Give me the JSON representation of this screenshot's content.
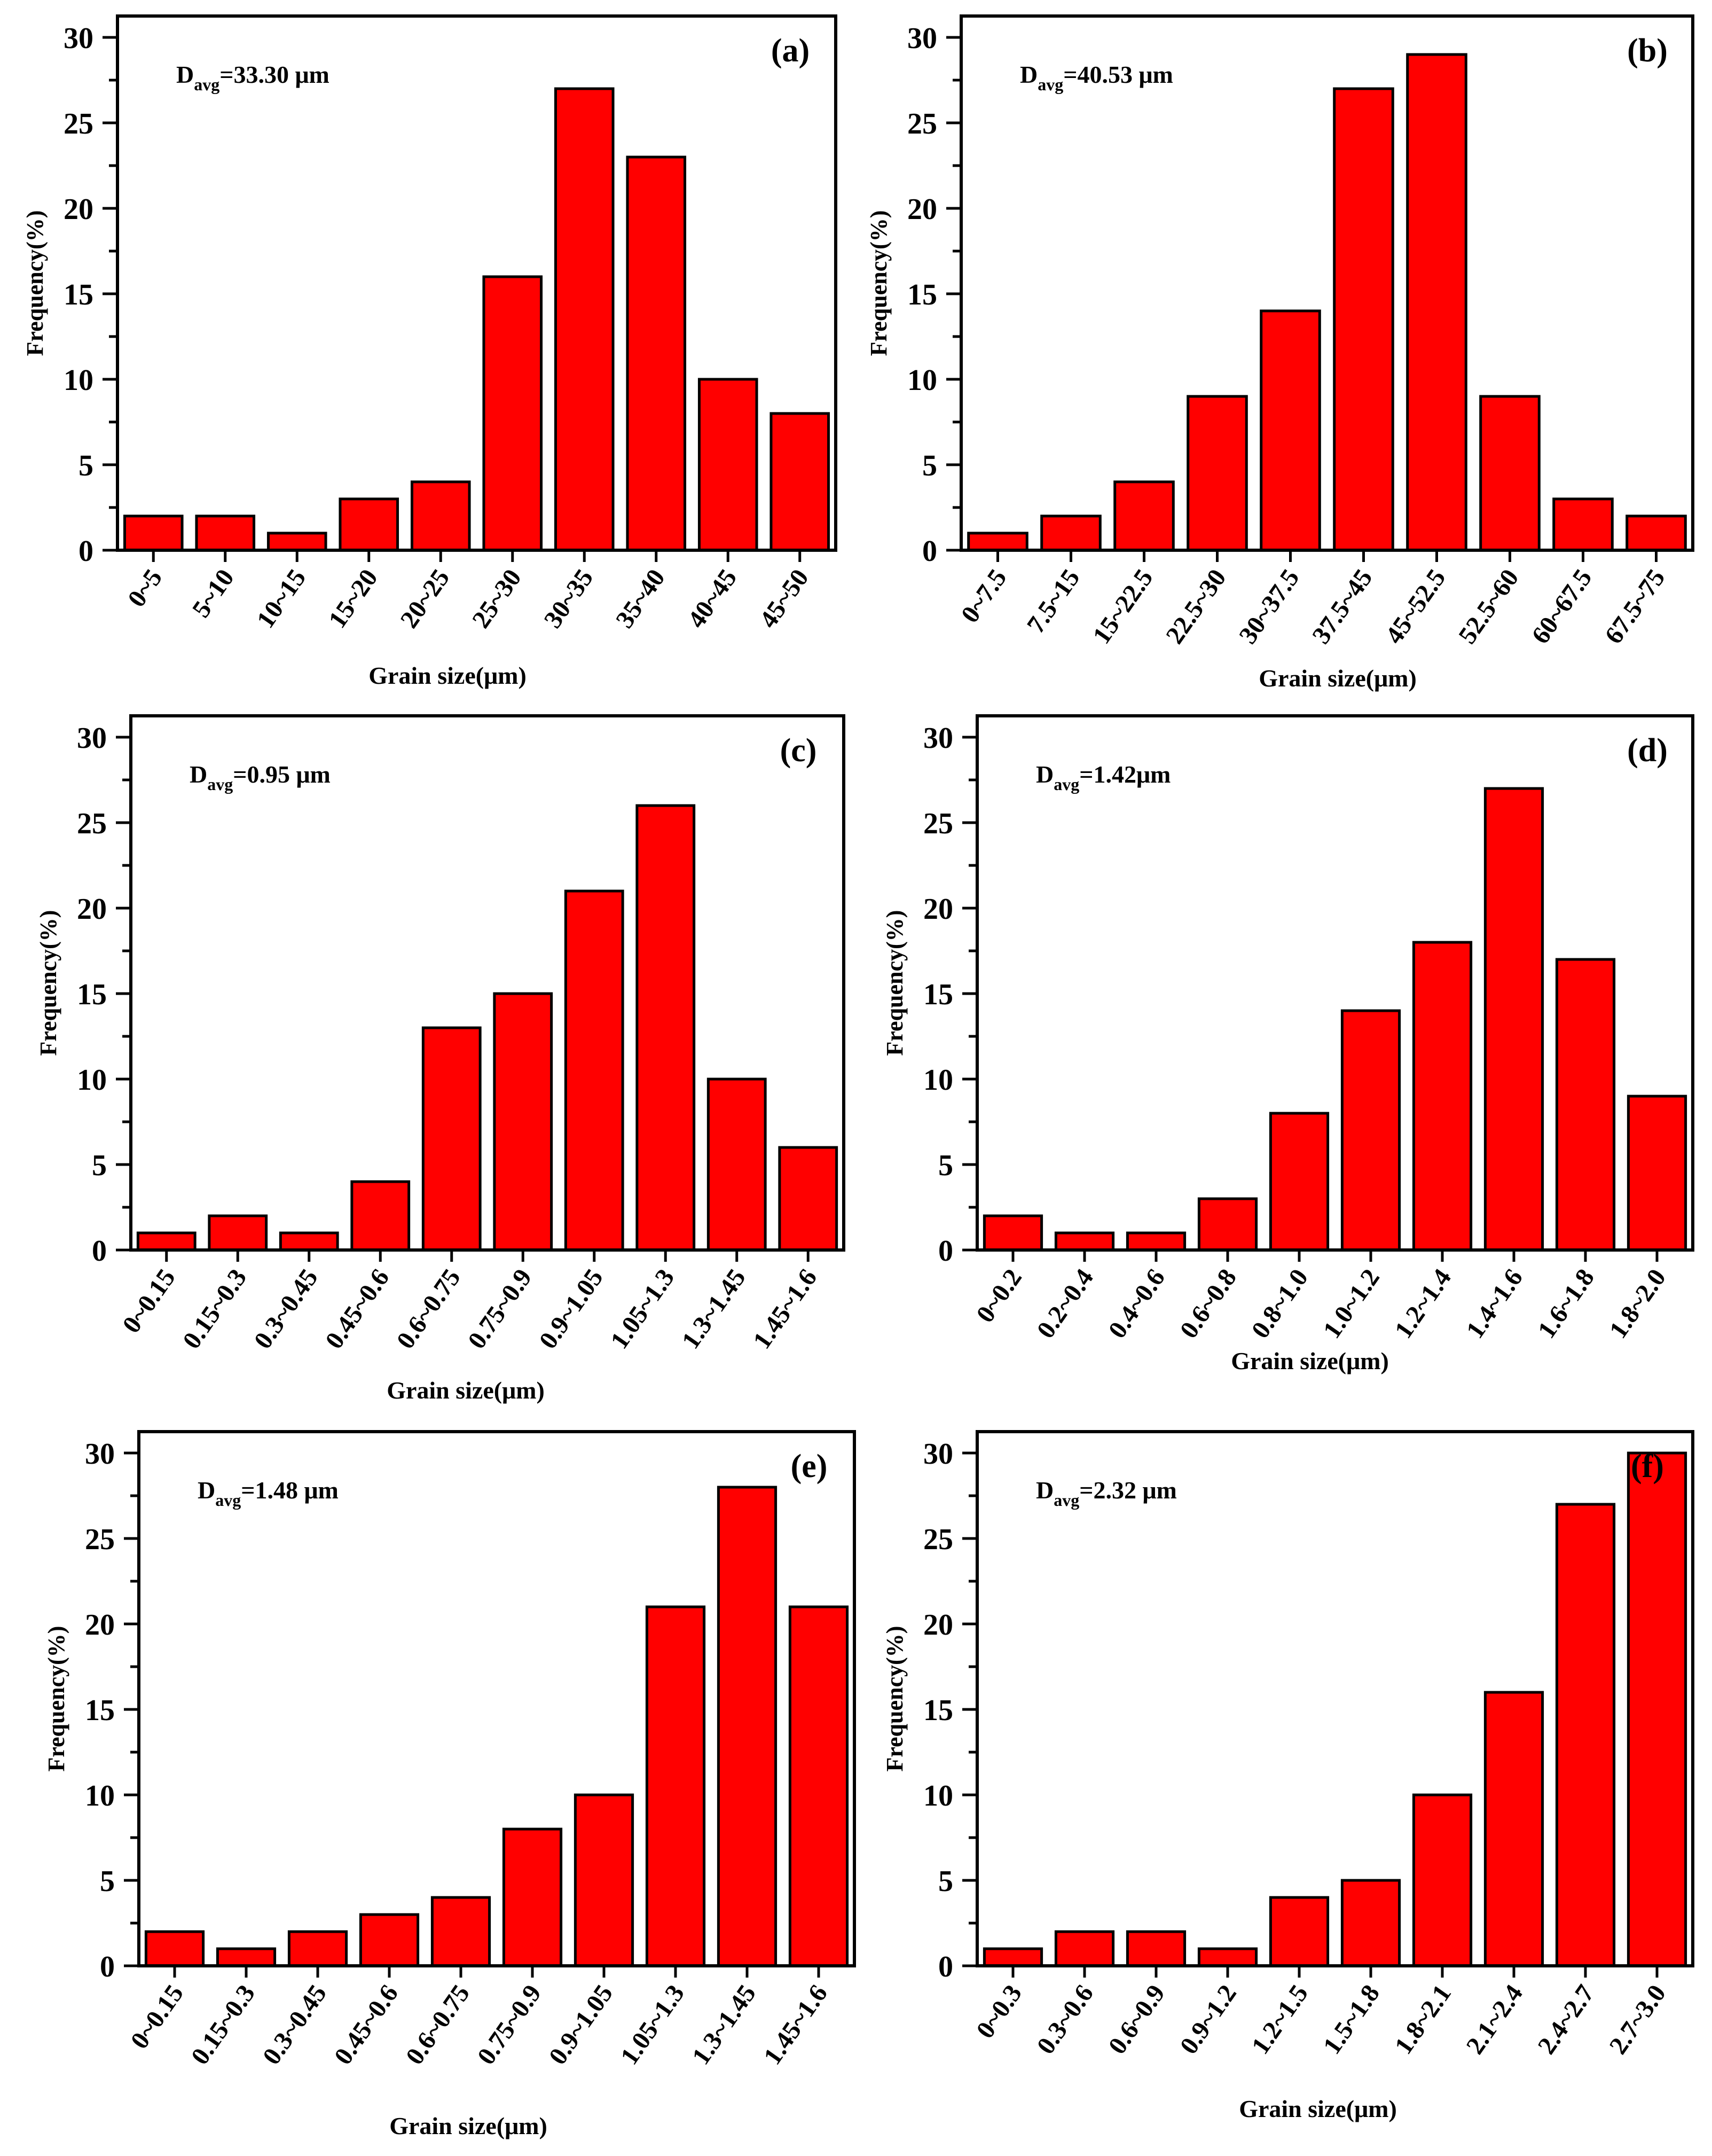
{
  "colors": {
    "bar": "#ff0000",
    "edge": "#000000",
    "background": "#ffffff"
  },
  "chart_data": [
    {
      "type": "bar",
      "panel": "(a)",
      "avg_prefix": "D",
      "avg_sub": "avg",
      "avg_value": "=33.30 μm",
      "xlabel": "Grain size(μm)",
      "ylabel": "Frequency(%)",
      "ylim": [
        0,
        30
      ],
      "yticks": [
        "0",
        "5",
        "10",
        "15",
        "20",
        "25",
        "30"
      ],
      "categories": [
        "0~5",
        "5~10",
        "10~15",
        "15~20",
        "20~25",
        "25~30",
        "30~35",
        "35~40",
        "40~45",
        "45~50"
      ],
      "values": [
        2,
        2,
        1,
        3,
        4,
        16,
        27,
        23,
        10,
        8
      ]
    },
    {
      "type": "bar",
      "panel": "(b)",
      "avg_prefix": "D",
      "avg_sub": "avg",
      "avg_value": "=40.53 μm",
      "xlabel": "Grain size(μm)",
      "ylabel": "Frequency(%)",
      "ylim": [
        0,
        30
      ],
      "yticks": [
        "0",
        "5",
        "10",
        "15",
        "20",
        "25",
        "30"
      ],
      "categories": [
        "0~7.5",
        "7.5~15",
        "15~22.5",
        "22.5~30",
        "30~37.5",
        "37.5~45",
        "45~52.5",
        "52.5~60",
        "60~67.5",
        "67.5~75"
      ],
      "values": [
        1,
        2,
        4,
        9,
        14,
        27,
        29,
        9,
        3,
        2
      ]
    },
    {
      "type": "bar",
      "panel": "(c)",
      "avg_prefix": "D",
      "avg_sub": "avg",
      "avg_value": "=0.95 μm",
      "xlabel": "Grain size(μm)",
      "ylabel": "Frequency(%)",
      "ylim": [
        0,
        30
      ],
      "yticks": [
        "0",
        "5",
        "10",
        "15",
        "20",
        "25",
        "30"
      ],
      "categories": [
        "0~0.15",
        "0.15~0.3",
        "0.3~0.45",
        "0.45~0.6",
        "0.6~0.75",
        "0.75~0.9",
        "0.9~1.05",
        "1.05~1.3",
        "1.3~1.45",
        "1.45~1.6"
      ],
      "values": [
        1,
        2,
        1,
        4,
        13,
        15,
        21,
        26,
        10,
        6
      ]
    },
    {
      "type": "bar",
      "panel": "(d)",
      "avg_prefix": "D",
      "avg_sub": "avg",
      "avg_value": "=1.42μm",
      "xlabel": "Grain size(μm)",
      "ylabel": "Frequency(%)",
      "ylim": [
        0,
        30
      ],
      "yticks": [
        "0",
        "5",
        "10",
        "15",
        "20",
        "25",
        "30"
      ],
      "categories": [
        "0~0.2",
        "0.2~0.4",
        "0.4~0.6",
        "0.6~0.8",
        "0.8~1.0",
        "1.0~1.2",
        "1.2~1.4",
        "1.4~1.6",
        "1.6~1.8",
        "1.8~2.0"
      ],
      "values": [
        2,
        1,
        1,
        3,
        8,
        14,
        18,
        27,
        17,
        9
      ]
    },
    {
      "type": "bar",
      "panel": "(e)",
      "avg_prefix": "D",
      "avg_sub": "avg",
      "avg_value": "=1.48 μm",
      "xlabel": "Grain size(μm)",
      "ylabel": "Frequency(%)",
      "ylim": [
        0,
        30
      ],
      "yticks": [
        "0",
        "5",
        "10",
        "15",
        "20",
        "25",
        "30"
      ],
      "categories": [
        "0~0.15",
        "0.15~0.3",
        "0.3~0.45",
        "0.45~0.6",
        "0.6~0.75",
        "0.75~0.9",
        "0.9~1.05",
        "1.05~1.3",
        "1.3~1.45",
        "1.45~1.6"
      ],
      "values": [
        2,
        1,
        2,
        3,
        4,
        8,
        10,
        21,
        28,
        21
      ]
    },
    {
      "type": "bar",
      "panel": "(f)",
      "avg_prefix": "D",
      "avg_sub": "avg",
      "avg_value": "=2.32 μm",
      "xlabel": "Grain size(μm)",
      "ylabel": "Frequency(%)",
      "ylim": [
        0,
        30
      ],
      "yticks": [
        "0",
        "5",
        "10",
        "15",
        "20",
        "25",
        "30"
      ],
      "categories": [
        "0~0.3",
        "0.3~0.6",
        "0.6~0.9",
        "0.9~1.2",
        "1.2~1.5",
        "1.5~1.8",
        "1.8~2.1",
        "2.1~2.4",
        "2.4~2.7",
        "2.7~3.0"
      ],
      "values": [
        1,
        2,
        2,
        1,
        4,
        5,
        10,
        16,
        27,
        30
      ]
    }
  ]
}
